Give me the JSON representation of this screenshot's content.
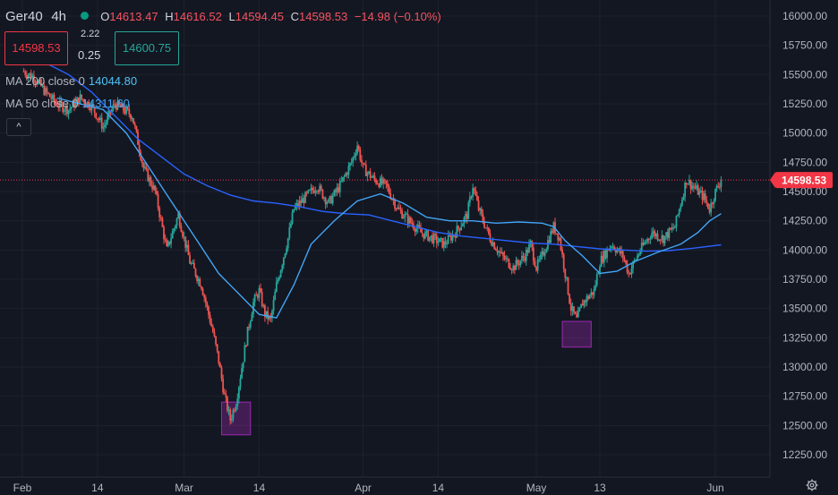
{
  "header": {
    "symbol": "Ger40",
    "interval": "4h",
    "open_label": "O",
    "open": "14613.47",
    "high_label": "H",
    "high": "14616.52",
    "low_label": "L",
    "low": "14594.45",
    "close_label": "C",
    "close": "14598.53",
    "change": "−14.98 (−0.10%)"
  },
  "trade": {
    "sell_price": "14598.53",
    "spread_top": "2.22",
    "spread": "0.25",
    "buy_price": "14600.75"
  },
  "indicators": {
    "ma200_label": "MA 200 close 0",
    "ma200_value": "14044.80",
    "ma50_label": "MA 50 close 0",
    "ma50_value": "14311.60",
    "collapse_glyph": "^"
  },
  "colors": {
    "background": "#131722",
    "up": "#26a69a",
    "down": "#ef5350",
    "ma200": "#2962ff",
    "ma50": "#42a5f5",
    "price_label": "#f23645",
    "highlight_box": "#9c27b0"
  },
  "chart_data": {
    "type": "candlestick",
    "title": "Ger40, 4h",
    "ylim": [
      12100,
      16100
    ],
    "y_ticks": [
      12250,
      12500,
      12750,
      13000,
      13250,
      13500,
      13750,
      14000,
      14250,
      14500,
      14750,
      15000,
      15250,
      15500,
      15750,
      16000
    ],
    "y_tick_labels": [
      "12250.00",
      "12500.00",
      "12750.00",
      "13000.00",
      "13250.00",
      "13500.00",
      "13750.00",
      "14000.00",
      "14250.00",
      "14500.00",
      "14750.00",
      "15000.00",
      "15250.00",
      "15500.00",
      "15750.00",
      "16000.00"
    ],
    "x_ticks": [
      {
        "label": "Feb",
        "day": 0
      },
      {
        "label": "14",
        "day": 13
      },
      {
        "label": "Mar",
        "day": 28
      },
      {
        "label": "14",
        "day": 41
      },
      {
        "label": "Apr",
        "day": 59
      },
      {
        "label": "14",
        "day": 72
      },
      {
        "label": "May",
        "day": 89
      },
      {
        "label": "13",
        "day": 100
      },
      {
        "label": "Jun",
        "day": 120
      }
    ],
    "last_price": 14598.53,
    "last_price_label": "14598.53",
    "close_anchors": [
      [
        0,
        15530
      ],
      [
        2,
        15480
      ],
      [
        4,
        15350
      ],
      [
        6,
        15250
      ],
      [
        8,
        15200
      ],
      [
        10,
        15300
      ],
      [
        12,
        15230
      ],
      [
        14,
        15050
      ],
      [
        16,
        15250
      ],
      [
        19,
        15150
      ],
      [
        21,
        14700
      ],
      [
        23,
        14500
      ],
      [
        25,
        14000
      ],
      [
        27,
        14300
      ],
      [
        29,
        13900
      ],
      [
        31,
        13700
      ],
      [
        33,
        13300
      ],
      [
        34,
        13050
      ],
      [
        35,
        12750
      ],
      [
        36,
        12550
      ],
      [
        37,
        12700
      ],
      [
        38,
        13000
      ],
      [
        39,
        13300
      ],
      [
        40,
        13550
      ],
      [
        41,
        13650
      ],
      [
        42,
        13450
      ],
      [
        43,
        13400
      ],
      [
        44,
        13700
      ],
      [
        45,
        13900
      ],
      [
        46,
        14100
      ],
      [
        47,
        14350
      ],
      [
        49,
        14450
      ],
      [
        51,
        14550
      ],
      [
        53,
        14400
      ],
      [
        55,
        14550
      ],
      [
        57,
        14750
      ],
      [
        58,
        14900
      ],
      [
        59,
        14700
      ],
      [
        61,
        14600
      ],
      [
        63,
        14550
      ],
      [
        65,
        14350
      ],
      [
        67,
        14250
      ],
      [
        69,
        14150
      ],
      [
        71,
        14100
      ],
      [
        73,
        14050
      ],
      [
        75,
        14150
      ],
      [
        77,
        14300
      ],
      [
        78,
        14550
      ],
      [
        79,
        14350
      ],
      [
        81,
        14100
      ],
      [
        83,
        13950
      ],
      [
        85,
        13850
      ],
      [
        87,
        13950
      ],
      [
        88,
        14050
      ],
      [
        89,
        13850
      ],
      [
        90,
        13950
      ],
      [
        92,
        14200
      ],
      [
        93,
        14100
      ],
      [
        94,
        13800
      ],
      [
        95,
        13500
      ],
      [
        96,
        13400
      ],
      [
        97,
        13550
      ],
      [
        99,
        13650
      ],
      [
        100,
        13900
      ],
      [
        102,
        14050
      ],
      [
        104,
        13950
      ],
      [
        105,
        13800
      ],
      [
        107,
        14000
      ],
      [
        109,
        14150
      ],
      [
        111,
        14100
      ],
      [
        113,
        14200
      ],
      [
        115,
        14600
      ],
      [
        116,
        14550
      ],
      [
        118,
        14450
      ],
      [
        119,
        14350
      ],
      [
        120,
        14500
      ],
      [
        121,
        14598
      ]
    ],
    "series": [
      {
        "name": "MA 200 close 0",
        "color": "#2962ff",
        "points": [
          [
            4,
            15600
          ],
          [
            8,
            15500
          ],
          [
            12,
            15350
          ],
          [
            16,
            15150
          ],
          [
            20,
            14950
          ],
          [
            24,
            14800
          ],
          [
            28,
            14650
          ],
          [
            32,
            14550
          ],
          [
            36,
            14470
          ],
          [
            40,
            14420
          ],
          [
            44,
            14400
          ],
          [
            48,
            14370
          ],
          [
            52,
            14330
          ],
          [
            56,
            14310
          ],
          [
            60,
            14300
          ],
          [
            64,
            14250
          ],
          [
            68,
            14200
          ],
          [
            72,
            14150
          ],
          [
            76,
            14120
          ],
          [
            80,
            14100
          ],
          [
            84,
            14080
          ],
          [
            88,
            14060
          ],
          [
            92,
            14050
          ],
          [
            96,
            14030
          ],
          [
            100,
            14010
          ],
          [
            104,
            14000
          ],
          [
            108,
            13990
          ],
          [
            112,
            13995
          ],
          [
            116,
            14015
          ],
          [
            121,
            14045
          ]
        ]
      },
      {
        "name": "MA 50 close 0",
        "color": "#42a5f5",
        "points": [
          [
            6,
            15300
          ],
          [
            10,
            15250
          ],
          [
            14,
            15200
          ],
          [
            18,
            15000
          ],
          [
            22,
            14700
          ],
          [
            26,
            14400
          ],
          [
            30,
            14100
          ],
          [
            34,
            13800
          ],
          [
            38,
            13600
          ],
          [
            41,
            13450
          ],
          [
            44,
            13420
          ],
          [
            47,
            13700
          ],
          [
            50,
            14050
          ],
          [
            54,
            14250
          ],
          [
            58,
            14420
          ],
          [
            62,
            14480
          ],
          [
            66,
            14400
          ],
          [
            70,
            14280
          ],
          [
            74,
            14250
          ],
          [
            78,
            14250
          ],
          [
            82,
            14230
          ],
          [
            86,
            14240
          ],
          [
            90,
            14230
          ],
          [
            92,
            14200
          ],
          [
            94,
            14080
          ],
          [
            97,
            13950
          ],
          [
            100,
            13800
          ],
          [
            103,
            13820
          ],
          [
            106,
            13900
          ],
          [
            110,
            13980
          ],
          [
            114,
            14050
          ],
          [
            117,
            14150
          ],
          [
            119,
            14250
          ],
          [
            121,
            14311
          ]
        ]
      }
    ],
    "highlight_zones": [
      {
        "day_from": 34.5,
        "day_to": 39.5,
        "y_from": 12420,
        "y_to": 12700
      },
      {
        "day_from": 93.5,
        "day_to": 98.5,
        "y_from": 13170,
        "y_to": 13390
      }
    ]
  }
}
